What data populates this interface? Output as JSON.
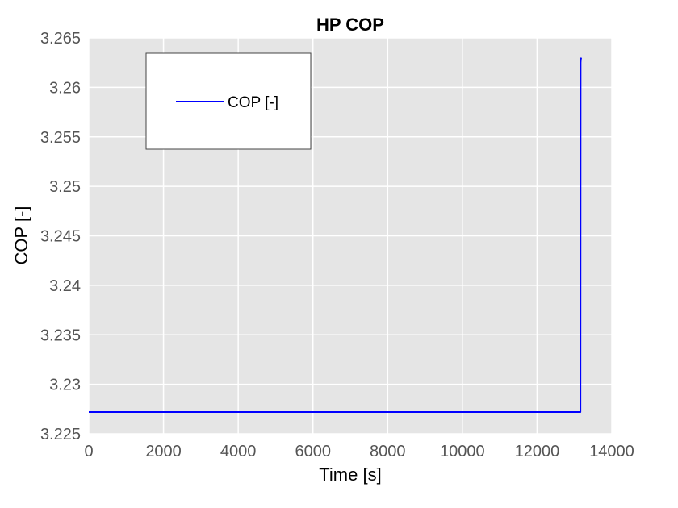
{
  "chart_data": {
    "type": "line",
    "title": "HP COP",
    "xlabel": "Time [s]",
    "ylabel": "COP [-]",
    "xlim": [
      0,
      14000
    ],
    "ylim": [
      3.225,
      3.265
    ],
    "xticks": [
      0,
      2000,
      4000,
      6000,
      8000,
      10000,
      12000,
      14000
    ],
    "xtick_labels": [
      "0",
      "2000",
      "4000",
      "6000",
      "8000",
      "10000",
      "12000",
      "14000"
    ],
    "yticks": [
      3.225,
      3.23,
      3.235,
      3.24,
      3.245,
      3.25,
      3.255,
      3.26,
      3.265
    ],
    "ytick_labels": [
      "3.225",
      "3.23",
      "3.235",
      "3.24",
      "3.245",
      "3.25",
      "3.255",
      "3.26",
      "3.265"
    ],
    "grid": true,
    "legend_position": "top-left",
    "series": [
      {
        "name": "COP [-]",
        "color": "#0000ff",
        "x": [
          0,
          13160,
          13165,
          13170,
          13180
        ],
        "y": [
          3.2272,
          3.2272,
          3.2625,
          3.2628,
          3.263
        ]
      }
    ],
    "colors": {
      "plot_background": "#e5e5e5",
      "grid": "#ffffff",
      "line": "#0000ff"
    }
  }
}
